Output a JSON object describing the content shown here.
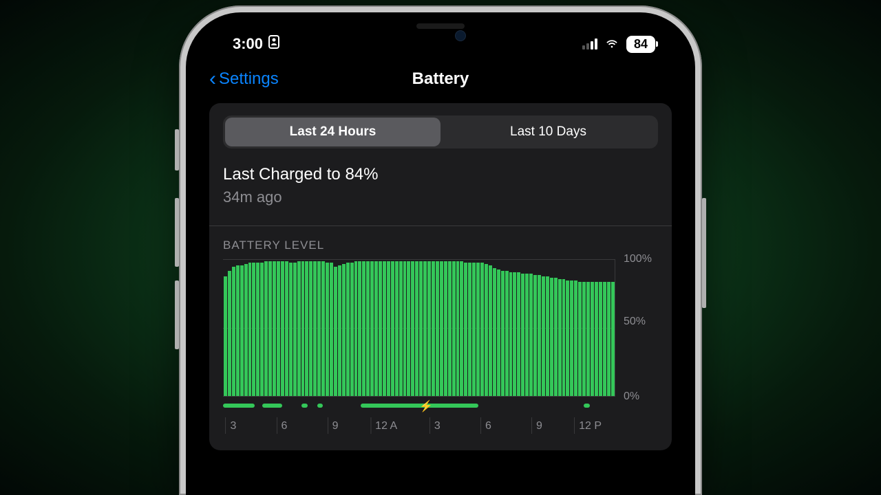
{
  "status": {
    "time": "3:00",
    "battery_pct": "84"
  },
  "nav": {
    "back_label": "Settings",
    "title": "Battery"
  },
  "segment": {
    "tab1": "Last 24 Hours",
    "tab2": "Last 10 Days",
    "active_index": 0
  },
  "charge": {
    "title": "Last Charged to 84%",
    "subtitle": "34m ago"
  },
  "chart": {
    "type": "bar",
    "section_label": "BATTERY LEVEL",
    "bar_color": "#34c759",
    "grid_color": "#3a3a3c",
    "background_color": "#1c1c1e",
    "label_color": "#8e8e93",
    "ylim": [
      0,
      100
    ],
    "y_ticks": [
      "100%",
      "50%",
      "0%"
    ],
    "values": [
      88,
      92,
      95,
      96,
      96,
      97,
      98,
      98,
      98,
      98,
      99,
      99,
      99,
      99,
      99,
      99,
      98,
      98,
      99,
      99,
      99,
      99,
      99,
      99,
      99,
      98,
      98,
      95,
      96,
      97,
      98,
      98,
      99,
      99,
      99,
      99,
      99,
      99,
      99,
      99,
      99,
      99,
      99,
      99,
      99,
      99,
      99,
      99,
      99,
      99,
      99,
      99,
      99,
      99,
      99,
      99,
      99,
      99,
      99,
      98,
      98,
      98,
      98,
      98,
      97,
      96,
      94,
      93,
      92,
      92,
      91,
      91,
      91,
      90,
      90,
      90,
      89,
      89,
      88,
      88,
      87,
      87,
      86,
      86,
      85,
      85,
      85,
      84,
      84,
      84,
      84,
      84,
      84,
      84,
      84,
      84
    ],
    "x_ticks": [
      {
        "label": "3",
        "pos_pct": 2
      },
      {
        "label": "6",
        "pos_pct": 15
      },
      {
        "label": "9",
        "pos_pct": 28
      },
      {
        "label": "12 A",
        "pos_pct": 41
      },
      {
        "label": "3",
        "pos_pct": 54
      },
      {
        "label": "6",
        "pos_pct": 67
      },
      {
        "label": "9",
        "pos_pct": 80
      },
      {
        "label": "12 P",
        "pos_pct": 93
      }
    ],
    "charging_segments": [
      {
        "start_pct": 0,
        "width_pct": 8
      },
      {
        "start_pct": 10,
        "width_pct": 5
      },
      {
        "start_pct": 20,
        "width_pct": 1.5
      },
      {
        "start_pct": 24,
        "width_pct": 1.5
      },
      {
        "start_pct": 35,
        "width_pct": 30
      },
      {
        "start_pct": 92,
        "width_pct": 1.5
      }
    ],
    "bolt_pos_pct": 50
  }
}
